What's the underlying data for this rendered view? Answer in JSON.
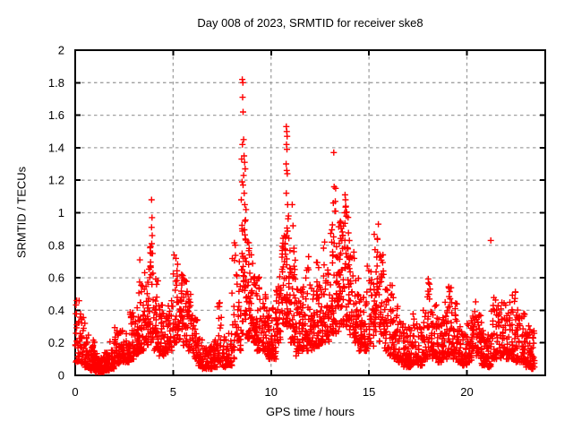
{
  "page": {
    "background": "#ffffff"
  },
  "chart_data": {
    "type": "scatter",
    "title": "Day 008 of 2023, SRMTID for receiver ske8",
    "xlabel": "GPS time / hours",
    "ylabel": "SRMTID / TECUs",
    "xlim": [
      0,
      24
    ],
    "ylim": [
      0,
      2
    ],
    "xticks": {
      "values": [
        0,
        5,
        10,
        15,
        20
      ],
      "labels": [
        "0",
        "5",
        "10",
        "15",
        "20"
      ]
    },
    "yticks": {
      "values": [
        0,
        0.2,
        0.4,
        0.6,
        0.8,
        1,
        1.2,
        1.4,
        1.6,
        1.8,
        2
      ],
      "labels": [
        "0",
        "0.2",
        "0.4",
        "0.6",
        "0.8",
        "1",
        "1.2",
        "1.4",
        "1.6",
        "1.8",
        "2"
      ]
    },
    "grid": {
      "show": true,
      "style": "dashed",
      "color": "#a0a0a0"
    },
    "axis_color": "#000000",
    "marker": {
      "shape": "plus",
      "color": "#ff0000",
      "size": 7
    },
    "legend": "none",
    "x_start": 0.0,
    "x_end": 23.45,
    "bin_hours": 0.25,
    "bins_format": [
      "y_min",
      "y_max_dense",
      "n_points",
      "concentration"
    ],
    "bins": [
      [
        0.08,
        0.46,
        26,
        1.6
      ],
      [
        0.07,
        0.38,
        30,
        1.8
      ],
      [
        0.05,
        0.3,
        30,
        2.0
      ],
      [
        0.03,
        0.22,
        34,
        2.0
      ],
      [
        0.02,
        0.15,
        34,
        2.0
      ],
      [
        0.02,
        0.12,
        34,
        2.0
      ],
      [
        0.03,
        0.15,
        34,
        2.0
      ],
      [
        0.04,
        0.22,
        30,
        2.0
      ],
      [
        0.07,
        0.3,
        30,
        1.8
      ],
      [
        0.08,
        0.28,
        30,
        1.9
      ],
      [
        0.08,
        0.26,
        30,
        2.0
      ],
      [
        0.1,
        0.4,
        30,
        1.8
      ],
      [
        0.13,
        0.46,
        30,
        1.7
      ],
      [
        0.15,
        0.6,
        32,
        1.7
      ],
      [
        0.18,
        0.66,
        32,
        1.6
      ],
      [
        0.2,
        0.8,
        34,
        1.7
      ],
      [
        0.15,
        0.62,
        30,
        1.7
      ],
      [
        0.12,
        0.46,
        28,
        1.8
      ],
      [
        0.12,
        0.38,
        26,
        1.8
      ],
      [
        0.15,
        0.46,
        26,
        1.6
      ],
      [
        0.2,
        0.72,
        30,
        1.5
      ],
      [
        0.22,
        0.66,
        30,
        1.5
      ],
      [
        0.18,
        0.6,
        30,
        1.6
      ],
      [
        0.15,
        0.5,
        28,
        1.7
      ],
      [
        0.1,
        0.4,
        28,
        1.9
      ],
      [
        0.06,
        0.25,
        28,
        2.0
      ],
      [
        0.04,
        0.18,
        28,
        2.0
      ],
      [
        0.04,
        0.18,
        28,
        2.0
      ],
      [
        0.05,
        0.22,
        26,
        2.0
      ],
      [
        0.08,
        0.45,
        26,
        2.2
      ],
      [
        0.05,
        0.25,
        26,
        2.0
      ],
      [
        0.06,
        0.28,
        26,
        2.0
      ],
      [
        0.1,
        0.9,
        22,
        2.4
      ],
      [
        0.15,
        0.85,
        26,
        1.9
      ],
      [
        0.25,
        0.98,
        40,
        1.3
      ],
      [
        0.22,
        0.85,
        38,
        1.4
      ],
      [
        0.2,
        0.7,
        34,
        1.5
      ],
      [
        0.15,
        0.62,
        32,
        1.6
      ],
      [
        0.15,
        0.5,
        30,
        1.7
      ],
      [
        0.1,
        0.4,
        34,
        1.9
      ],
      [
        0.1,
        0.42,
        34,
        1.8
      ],
      [
        0.2,
        0.62,
        32,
        1.4
      ],
      [
        0.3,
        0.9,
        36,
        1.3
      ],
      [
        0.3,
        1.0,
        38,
        1.4
      ],
      [
        0.2,
        0.85,
        32,
        1.6
      ],
      [
        0.12,
        0.55,
        30,
        1.7
      ],
      [
        0.15,
        0.55,
        30,
        1.6
      ],
      [
        0.15,
        0.73,
        30,
        1.7
      ],
      [
        0.15,
        0.55,
        30,
        1.6
      ],
      [
        0.18,
        0.7,
        32,
        1.5
      ],
      [
        0.2,
        0.82,
        32,
        1.6
      ],
      [
        0.2,
        0.66,
        32,
        1.5
      ],
      [
        0.25,
        0.95,
        34,
        1.5
      ],
      [
        0.25,
        1.05,
        34,
        1.5
      ],
      [
        0.3,
        0.95,
        36,
        1.4
      ],
      [
        0.3,
        1.05,
        36,
        1.4
      ],
      [
        0.25,
        0.8,
        32,
        1.5
      ],
      [
        0.2,
        0.6,
        30,
        1.6
      ],
      [
        0.15,
        0.48,
        28,
        1.7
      ],
      [
        0.15,
        0.68,
        28,
        1.9
      ],
      [
        0.18,
        0.65,
        28,
        1.5
      ],
      [
        0.25,
        0.88,
        30,
        1.5
      ],
      [
        0.2,
        0.75,
        30,
        1.6
      ],
      [
        0.15,
        0.55,
        28,
        1.7
      ],
      [
        0.12,
        0.64,
        28,
        1.9
      ],
      [
        0.1,
        0.45,
        28,
        1.9
      ],
      [
        0.08,
        0.35,
        28,
        2.0
      ],
      [
        0.05,
        0.3,
        28,
        2.0
      ],
      [
        0.05,
        0.3,
        28,
        2.0
      ],
      [
        0.08,
        0.4,
        26,
        2.0
      ],
      [
        0.06,
        0.3,
        26,
        2.0
      ],
      [
        0.1,
        0.5,
        28,
        1.9
      ],
      [
        0.12,
        0.64,
        28,
        1.8
      ],
      [
        0.1,
        0.45,
        28,
        1.9
      ],
      [
        0.08,
        0.35,
        28,
        2.0
      ],
      [
        0.1,
        0.45,
        30,
        1.9
      ],
      [
        0.12,
        0.64,
        30,
        1.8
      ],
      [
        0.1,
        0.45,
        28,
        1.9
      ],
      [
        0.08,
        0.32,
        28,
        2.0
      ],
      [
        0.06,
        0.28,
        28,
        2.0
      ],
      [
        0.08,
        0.35,
        28,
        2.0
      ],
      [
        0.12,
        0.46,
        28,
        1.8
      ],
      [
        0.1,
        0.38,
        28,
        1.9
      ],
      [
        0.06,
        0.28,
        28,
        2.0
      ],
      [
        0.05,
        0.25,
        28,
        2.0
      ],
      [
        0.1,
        0.57,
        26,
        2.2
      ],
      [
        0.1,
        0.45,
        28,
        1.9
      ],
      [
        0.12,
        0.45,
        28,
        1.8
      ],
      [
        0.1,
        0.48,
        30,
        1.9
      ],
      [
        0.1,
        0.52,
        30,
        1.9
      ],
      [
        0.08,
        0.42,
        30,
        2.0
      ],
      [
        0.08,
        0.38,
        30,
        2.0
      ],
      [
        0.05,
        0.32,
        30,
        2.0
      ],
      [
        0.04,
        0.28,
        24,
        2.0
      ]
    ],
    "notable_points": [
      [
        8.53,
        1.82
      ],
      [
        8.56,
        1.8
      ],
      [
        8.55,
        1.71
      ],
      [
        8.57,
        1.62
      ],
      [
        8.6,
        1.45
      ],
      [
        8.54,
        1.42
      ],
      [
        8.62,
        1.35
      ],
      [
        8.5,
        1.33
      ],
      [
        8.65,
        1.31
      ],
      [
        8.68,
        1.27
      ],
      [
        8.6,
        1.23
      ],
      [
        8.52,
        1.19
      ],
      [
        8.57,
        1.17
      ],
      [
        8.63,
        1.12
      ],
      [
        8.48,
        1.08
      ],
      [
        8.66,
        1.05
      ],
      [
        8.72,
        1.02
      ],
      [
        10.78,
        1.53
      ],
      [
        10.8,
        1.5
      ],
      [
        10.82,
        1.47
      ],
      [
        10.79,
        1.42
      ],
      [
        10.81,
        1.39
      ],
      [
        10.77,
        1.3
      ],
      [
        10.8,
        1.26
      ],
      [
        10.83,
        1.24
      ],
      [
        10.78,
        1.12
      ],
      [
        10.85,
        1.05
      ],
      [
        13.2,
        1.37
      ],
      [
        13.22,
        1.16
      ],
      [
        13.3,
        1.15
      ],
      [
        13.28,
        1.07
      ],
      [
        13.18,
        1.06
      ],
      [
        13.26,
        1.01
      ],
      [
        13.78,
        1.11
      ],
      [
        13.8,
        1.08
      ],
      [
        13.82,
        1.04
      ],
      [
        13.76,
        1.0
      ],
      [
        3.9,
        1.08
      ],
      [
        3.92,
        0.97
      ],
      [
        3.9,
        0.91
      ],
      [
        3.93,
        0.86
      ],
      [
        3.91,
        0.81
      ],
      [
        3.88,
        0.75
      ],
      [
        3.95,
        0.75
      ],
      [
        3.3,
        0.71
      ],
      [
        11.08,
        1.05
      ],
      [
        11.12,
        0.92
      ],
      [
        21.22,
        0.83
      ],
      [
        15.48,
        0.93
      ],
      [
        5.05,
        0.74
      ]
    ]
  }
}
